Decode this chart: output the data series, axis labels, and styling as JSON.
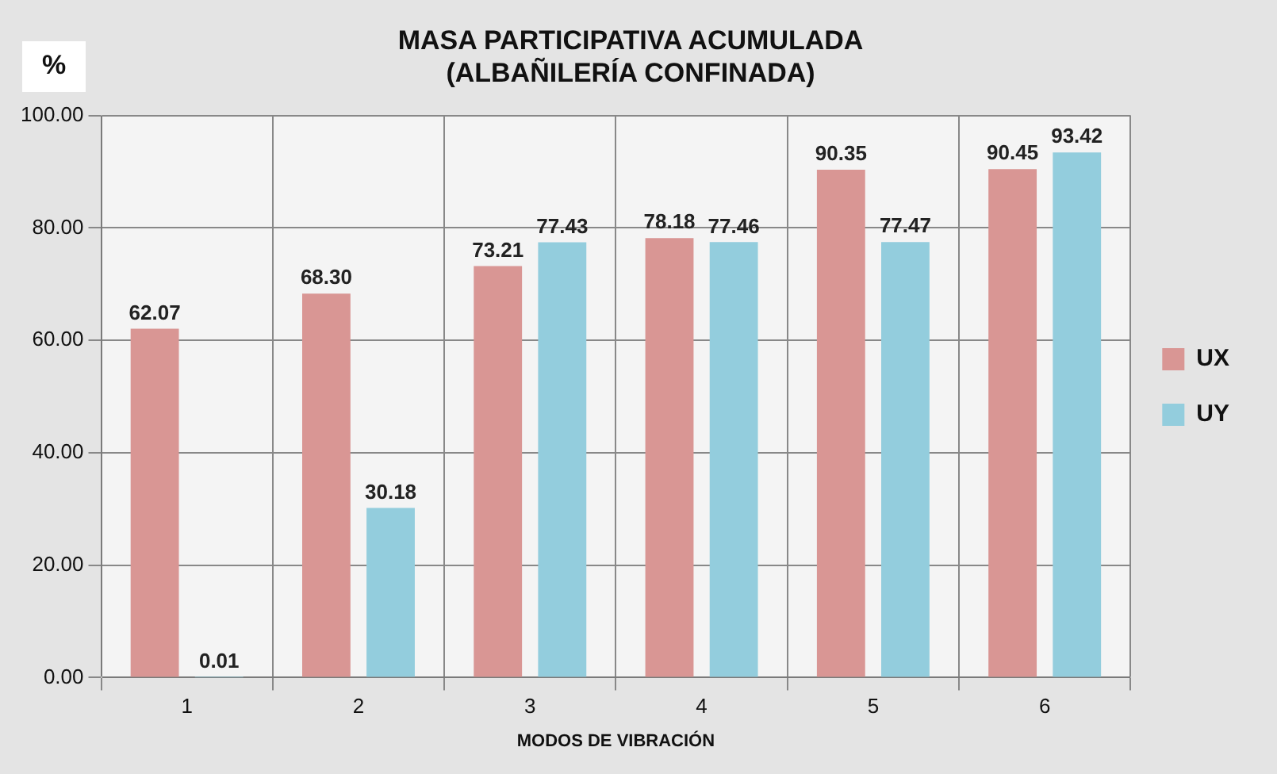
{
  "chart_data": {
    "type": "bar",
    "title": "MASA PARTICIPATIVA ACUMULADA\n(ALBAÑILERÍA CONFINADA)",
    "ylabel": "%",
    "xlabel": "MODOS DE VIBRACIÓN",
    "categories": [
      "1",
      "2",
      "3",
      "4",
      "5",
      "6"
    ],
    "series": [
      {
        "name": "UX",
        "color": "#d99694",
        "values": [
          62.07,
          68.3,
          73.21,
          78.18,
          90.35,
          90.45
        ],
        "value_labels": [
          "62.07",
          "68.30",
          "73.21",
          "78.18",
          "90.35",
          "90.45"
        ]
      },
      {
        "name": "UY",
        "color": "#93cddd",
        "values": [
          0.01,
          30.18,
          77.43,
          77.46,
          77.47,
          93.42
        ],
        "value_labels": [
          "0.01",
          "30.18",
          "77.43",
          "77.46",
          "77.47",
          "93.42"
        ]
      }
    ],
    "ylim": [
      0,
      100
    ],
    "yticks": [
      {
        "value": 0,
        "label": "0.00"
      },
      {
        "value": 20,
        "label": "20.00"
      },
      {
        "value": 40,
        "label": "40.00"
      },
      {
        "value": 60,
        "label": "60.00"
      },
      {
        "value": 80,
        "label": "80.00"
      },
      {
        "value": 100,
        "label": "100.00"
      }
    ],
    "grid": true,
    "legend": "right"
  }
}
